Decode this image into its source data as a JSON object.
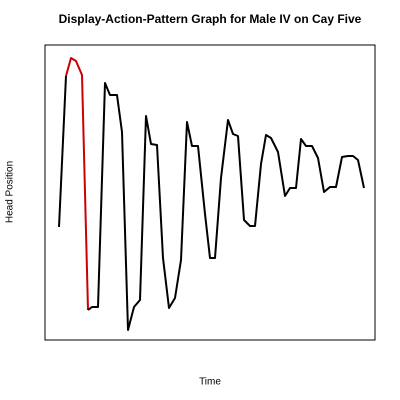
{
  "chart_data": {
    "type": "line",
    "title": "Display-Action-Pattern Graph for Male IV on Cay Five",
    "x_label": "Time",
    "y_label": "Head Position",
    "xlim": [
      0,
      330
    ],
    "ylim": [
      0,
      295
    ],
    "x": [
      14,
      21,
      26,
      31,
      37,
      43,
      47,
      53,
      60,
      65,
      72,
      77,
      83,
      89,
      95,
      101,
      106,
      112,
      118,
      124,
      130,
      136,
      142,
      147,
      153,
      160,
      165,
      170,
      176,
      183,
      188,
      193,
      199,
      205,
      210,
      216,
      221,
      226,
      233,
      240,
      245,
      251,
      256,
      261,
      267,
      273,
      279,
      285,
      291,
      297,
      303,
      308,
      313,
      319
    ],
    "values": [
      113,
      264,
      282,
      279,
      265,
      30,
      33,
      33,
      257,
      245,
      245,
      208,
      10,
      33,
      40,
      224,
      196,
      195,
      82,
      32,
      42,
      80,
      218,
      194,
      194,
      126,
      82,
      82,
      162,
      220,
      206,
      204,
      120,
      114,
      114,
      176,
      205,
      202,
      188,
      144,
      152,
      152,
      201,
      194,
      194,
      182,
      148,
      153,
      153,
      183,
      184,
      184,
      180,
      152
    ],
    "color": "#000000",
    "highlight_color": "#cc0000",
    "highlight_range": [
      1,
      5
    ]
  }
}
